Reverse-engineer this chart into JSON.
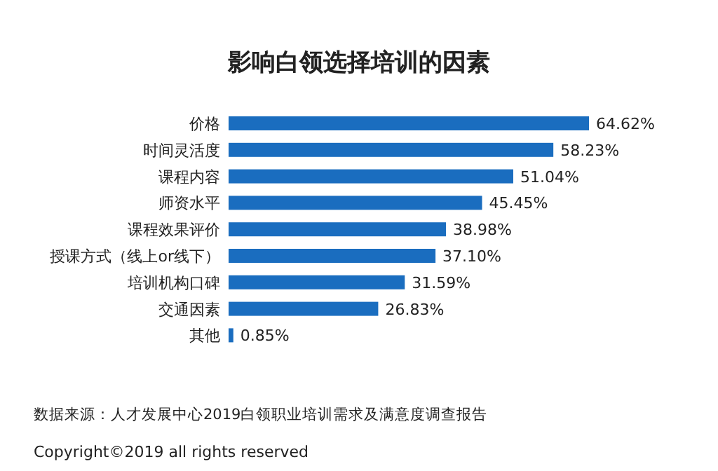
{
  "chart_data": {
    "type": "bar",
    "orientation": "horizontal",
    "title": "影响白领选择培训的因素",
    "categories": [
      "价格",
      "时间灵活度",
      "课程内容",
      "师资水平",
      "课程效果评价",
      "授课方式（线上or线下）",
      "培训机构口碑",
      "交通因素",
      "其他"
    ],
    "values": [
      64.62,
      58.23,
      51.04,
      45.45,
      38.98,
      37.1,
      31.59,
      26.83,
      0.85
    ],
    "value_labels": [
      "64.62%",
      "58.23%",
      "51.04%",
      "45.45%",
      "38.98%",
      "37.10%",
      "31.59%",
      "26.83%",
      "0.85%"
    ],
    "color": "#1a6dbf",
    "annotations": [
      "数据来源：人才发展中心2019白领职业培训需求及满意度调查报告",
      "Copyright©2019 all rights reserved"
    ]
  }
}
